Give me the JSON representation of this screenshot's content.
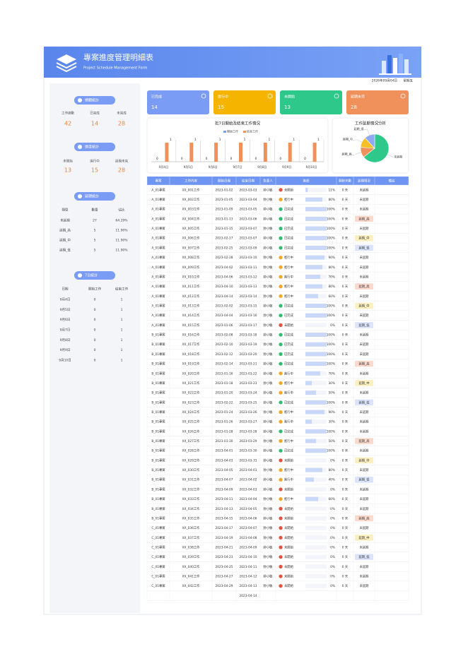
{
  "header": {
    "title": "專案進度管理明細表",
    "subtitle": "Project Schedule Management Form",
    "date": "2026年09月04日",
    "weekday": "星期五"
  },
  "overall": {
    "title": "總體統計",
    "labels": [
      "工作總數",
      "已完成",
      "未完成"
    ],
    "values": [
      42,
      14,
      28
    ]
  },
  "progress": {
    "title": "進度統計",
    "labels": [
      "未開始",
      "進行中",
      "延期未完"
    ],
    "values": [
      13,
      15,
      28
    ]
  },
  "delay_stats": {
    "title": "延期統計",
    "columns": [
      "類型",
      "數量",
      "佔比"
    ],
    "rows": [
      [
        "未延期",
        27,
        "64.29%"
      ],
      [
        "延期_高",
        5,
        "11.90%"
      ],
      [
        "延期_中",
        5,
        "11.90%"
      ],
      [
        "延期_低",
        5,
        "11.90%"
      ]
    ]
  },
  "week_stats": {
    "title": "7日統計",
    "columns": [
      "日期",
      "開始工作",
      "結束工作"
    ],
    "rows": [
      [
        "9月4日",
        0,
        1
      ],
      [
        "9月5日",
        0,
        1
      ],
      [
        "9月6日",
        0,
        1
      ],
      [
        "9月7日",
        0,
        1
      ],
      [
        "9月8日",
        0,
        1
      ],
      [
        "9月9日",
        0,
        1
      ],
      [
        "9月10日",
        0,
        1
      ]
    ]
  },
  "cards": [
    {
      "label": "已完成",
      "value": 14,
      "color": "#7b9cf5"
    },
    {
      "label": "進行中",
      "value": 15,
      "color": "#f5b400"
    },
    {
      "label": "未開始",
      "value": 13,
      "color": "#2dc88a"
    },
    {
      "label": "延期未完",
      "value": 28,
      "color": "#f0905a"
    }
  ],
  "chart_data": [
    {
      "type": "bar",
      "title": "近7日開始及結束工作情況",
      "categories": [
        "9月4日",
        "9月5日",
        "9月6日",
        "9月7日",
        "9月8日",
        "9月9日",
        "9月10日"
      ],
      "series": [
        {
          "name": "開始工作",
          "color": "#7b9cf5",
          "values": [
            0,
            0,
            0,
            0,
            0,
            0,
            0
          ]
        },
        {
          "name": "結束工作",
          "color": "#f0905a",
          "values": [
            1,
            1,
            1,
            1,
            1,
            1,
            1
          ]
        }
      ]
    },
    {
      "type": "pie",
      "title": "工作延期情況分析",
      "categories": [
        "未延期",
        "延期_高...",
        "延期_中...",
        "延期_低..."
      ],
      "values": [
        27,
        5,
        5,
        5
      ],
      "colors": [
        "#2dc88a",
        "#f0905a",
        "#f5c024",
        "#8fa9f2"
      ]
    }
  ],
  "table": {
    "columns": [
      "專案",
      "工作內容",
      "開始日期",
      "結束日期",
      "負責人",
      "進度",
      "剩餘天數",
      "延期情況",
      "備註"
    ],
    "rows": [
      [
        "A_01專案",
        "XX_001工作",
        "2023-01-02",
        "2023-03-03",
        "帥小敏",
        "未開始",
        11,
        "11%",
        "0 天",
        "未延期"
      ],
      [
        "A_01專案",
        "XX_002工作",
        "2023-01-05",
        "2023-03-04",
        "帥小敏",
        "進行中",
        80,
        "80%",
        "0 天",
        "未延期"
      ],
      [
        "A_01專案",
        "XX_003工作",
        "2023-01-09",
        "2023-03-05",
        "帥小敏",
        "已完成",
        100,
        "100%",
        "0 天",
        "未延期"
      ],
      [
        "A_01專案",
        "XX_004工作",
        "2023-01-13",
        "2023-03-06",
        "帥小敏",
        "已完成",
        100,
        "100%",
        "0 天",
        "延期_高"
      ],
      [
        "A_01專案",
        "XX_005工作",
        "2023-01-15",
        "2023-03-07",
        "帥小敏",
        "已完成",
        100,
        "100%",
        "0 天",
        "未延期"
      ],
      [
        "A_01專案",
        "XX_006工作",
        "2023-02-17",
        "2023-03-07",
        "帥小敏",
        "已完成",
        100,
        "100%",
        "0 天",
        "延期_中"
      ],
      [
        "A_01專案",
        "XX_007工作",
        "2023-02-25",
        "2023-03-09",
        "帥小敏",
        "已完成",
        100,
        "100%",
        "0 天",
        "延期_低"
      ],
      [
        "A_01專案",
        "XX_008工作",
        "2023-02-28",
        "2023-03-10",
        "帥小敏",
        "進行中",
        90,
        "90%",
        "0 天",
        "未延期"
      ],
      [
        "A_01專案",
        "XX_009工作",
        "2023-04-02",
        "2023-03-11",
        "帥小敏",
        "進行中",
        80,
        "80%",
        "0 天",
        "未延期"
      ],
      [
        "A_01專案",
        "XX_010工作",
        "2023-04-06",
        "2023-03-12",
        "帥小敏",
        "進行中",
        70,
        "70%",
        "0 天",
        "未延期"
      ],
      [
        "A_01專案",
        "XX_011工作",
        "2023-04-10",
        "2023-03-13",
        "帥小敏",
        "進行中",
        80,
        "80%",
        "0 天",
        "延期_高"
      ],
      [
        "A_01專案",
        "XX_012工作",
        "2023-04-14",
        "2023-03-14",
        "帥小敏",
        "進行中",
        60,
        "60%",
        "0 天",
        "未延期"
      ],
      [
        "A_01專案",
        "XX_013工作",
        "2023-02-02",
        "2023-03-15",
        "帥小敏",
        "已完成",
        100,
        "100%",
        "0 天",
        "延期_中"
      ],
      [
        "A_01專案",
        "XX_014工作",
        "2023-04-04",
        "2023-03-16",
        "帥小敏",
        "已完成",
        100,
        "100%",
        "0 天",
        "未延期"
      ],
      [
        "A_01專案",
        "XX_015工作",
        "2023-01-06",
        "2023-03-17",
        "帥小敏",
        "未開始",
        0,
        "0%",
        "0 天",
        "延期_低"
      ],
      [
        "B_01專案",
        "XX_016工作",
        "2023-02-08",
        "2023-03-18",
        "帥小敏",
        "已完成",
        100,
        "100%",
        "0 天",
        "未延期"
      ],
      [
        "B_01專案",
        "XX_017工作",
        "2023-02-10",
        "2023-03-19",
        "帥小敏",
        "已完成",
        100,
        "100%",
        "0 天",
        "未延期"
      ],
      [
        "B_01專案",
        "XX_018工作",
        "2023-02-12",
        "2023-03-20",
        "帥小敏",
        "已完成",
        100,
        "100%",
        "0 天",
        "未延期"
      ],
      [
        "B_01專案",
        "XX_019工作",
        "2023-02-14",
        "2023-03-21",
        "帥小敏",
        "已完成",
        100,
        "100%",
        "0 天",
        "延期_高"
      ],
      [
        "B_01專案",
        "XX_020工作",
        "2023-01-16",
        "2023-03-22",
        "帥小敏",
        "進行中",
        70,
        "70%",
        "0 天",
        "未延期"
      ],
      [
        "B_01專案",
        "XX_021工作",
        "2023-01-18",
        "2023-03-23",
        "帥小敏",
        "進行中",
        30,
        "30%",
        "0 天",
        "延期_中"
      ],
      [
        "B_01專案",
        "XX_022工作",
        "2023-01-20",
        "2023-03-24",
        "帥小敏",
        "進行中",
        50,
        "50%",
        "0 天",
        "未延期"
      ],
      [
        "B_01專案",
        "XX_023工作",
        "2023-02-22",
        "2023-03-25",
        "帥小敏",
        "已完成",
        100,
        "100%",
        "0 天",
        "延期_低"
      ],
      [
        "B_01專案",
        "XX_024工作",
        "2023-01-24",
        "2023-03-26",
        "帥小敏",
        "進行中",
        90,
        "90%",
        "0 天",
        "未延期"
      ],
      [
        "B_01專案",
        "XX_025工作",
        "2023-01-26",
        "2023-03-27",
        "帥小敏",
        "進行中",
        30,
        "30%",
        "0 天",
        "未延期"
      ],
      [
        "B_01專案",
        "XX_026工作",
        "2023-01-28",
        "2023-03-28",
        "帥小敏",
        "已完成",
        100,
        "100%",
        "0 天",
        "未延期"
      ],
      [
        "B_01專案",
        "XX_027工作",
        "2023-01-30",
        "2023-03-29",
        "帥小敏",
        "進行中",
        50,
        "50%",
        "0 天",
        "延期_高"
      ],
      [
        "B_01專案",
        "XX_028工作",
        "2023-04-01",
        "2023-03-30",
        "帥小敏",
        "已完成",
        100,
        "100%",
        "0 天",
        "未延期"
      ],
      [
        "B_01專案",
        "XX_029工作",
        "2023-04-03",
        "2023-03-31",
        "帥小敏",
        "未開始",
        0,
        "0%",
        "0 天",
        "延期_中"
      ],
      [
        "B_01專案",
        "XX_030工作",
        "2023-04-05",
        "2023-04-01",
        "帥小敏",
        "進行中",
        80,
        "80%",
        "0 天",
        "未延期"
      ],
      [
        "B_01專案",
        "XX_031工作",
        "2023-04-07",
        "2023-04-02",
        "帥小敏",
        "進行中",
        40,
        "40%",
        "0 天",
        "延期_低"
      ],
      [
        "B_01專案",
        "XX_032工作",
        "2023-04-09",
        "2023-04-03",
        "帥小敏",
        "未開始",
        0,
        "0%",
        "0 天",
        "未延期"
      ],
      [
        "B_01專案",
        "XX_033工作",
        "2023-04-11",
        "2023-04-04",
        "帥小敏",
        "進行中",
        60,
        "60%",
        "0 天",
        "未延期"
      ],
      [
        "B_01專案",
        "XX_034工作",
        "2023-04-13",
        "2023-04-05",
        "帥小敏",
        "未開始",
        0,
        "0%",
        "0 天",
        "未延期"
      ],
      [
        "B_01專案",
        "XX_035工作",
        "2023-04-15",
        "2023-04-06",
        "帥小敏",
        "未開始",
        0,
        "0%",
        "0 天",
        "延期_高"
      ],
      [
        "C_01專案",
        "XX_036工作",
        "2023-04-17",
        "2023-04-07",
        "帥小敏",
        "未開始",
        0,
        "0%",
        "0 天",
        "未延期"
      ],
      [
        "C_01專案",
        "XX_037工作",
        "2023-04-19",
        "2023-04-08",
        "帥小敏",
        "未開始",
        0,
        "0%",
        "0 天",
        "延期_中"
      ],
      [
        "C_01專案",
        "XX_038工作",
        "2023-04-21",
        "2023-04-09",
        "帥小敏",
        "未開始",
        0,
        "0%",
        "0 天",
        "未延期"
      ],
      [
        "C_01專案",
        "XX_039工作",
        "2023-04-23",
        "2023-04-10",
        "帥小敏",
        "未開始",
        0,
        "0%",
        "0 天",
        "延期_低"
      ],
      [
        "C_01專案",
        "XX_040工作",
        "2023-04-25",
        "2023-04-11",
        "帥小敏",
        "未開始",
        0,
        "0%",
        "0 天",
        "未延期"
      ],
      [
        "C_01專案",
        "XX_041工作",
        "2023-04-27",
        "2023-04-12",
        "帥小敏",
        "未開始",
        0,
        "0%",
        "0 天",
        "未延期"
      ],
      [
        "C_01專案",
        "XX_042工作",
        "2023-04-29",
        "2023-04-13",
        "帥小敏",
        "未開始",
        0,
        "0%",
        "0 天",
        "未延期"
      ]
    ],
    "status_colors": [
      "#e8503a",
      "#f5a623",
      "#2dbd6e",
      "#2dbd6e",
      "#2dbd6e",
      "#2dbd6e",
      "#2dbd6e",
      "#f5a623",
      "#f5a623",
      "#f5a623",
      "#f5a623",
      "#f5a623",
      "#2dbd6e",
      "#2dbd6e",
      "#e8503a",
      "#2dbd6e",
      "#2dbd6e",
      "#2dbd6e",
      "#2dbd6e",
      "#f5a623",
      "#f5a623",
      "#f5a623",
      "#2dbd6e",
      "#f5a623",
      "#f5a623",
      "#2dbd6e",
      "#f5a623",
      "#2dbd6e",
      "#e8503a",
      "#f5a623",
      "#f5a623",
      "#e8503a",
      "#f5a623",
      "#e8503a",
      "#e8503a",
      "#e8503a",
      "#e8503a",
      "#e8503a",
      "#e8503a",
      "#e8503a",
      "#e8503a",
      "#e8503a"
    ],
    "delay_colors": [
      "#ffffff",
      "#ffffff",
      "#ffffff",
      "#fbd9cc",
      "#ffffff",
      "#fcefc0",
      "#dbe4fa",
      "#ffffff",
      "#ffffff",
      "#ffffff",
      "#fbd9cc",
      "#ffffff",
      "#fcefc0",
      "#ffffff",
      "#dbe4fa",
      "#ffffff",
      "#ffffff",
      "#ffffff",
      "#fbd9cc",
      "#ffffff",
      "#fcefc0",
      "#ffffff",
      "#dbe4fa",
      "#ffffff",
      "#ffffff",
      "#ffffff",
      "#fbd9cc",
      "#ffffff",
      "#fcefc0",
      "#ffffff",
      "#dbe4fa",
      "#ffffff",
      "#ffffff",
      "#ffffff",
      "#fbd9cc",
      "#ffffff",
      "#fcefc0",
      "#ffffff",
      "#dbe4fa",
      "#ffffff",
      "#ffffff",
      "#ffffff"
    ],
    "trailing_end_date": "2023-04-14"
  }
}
